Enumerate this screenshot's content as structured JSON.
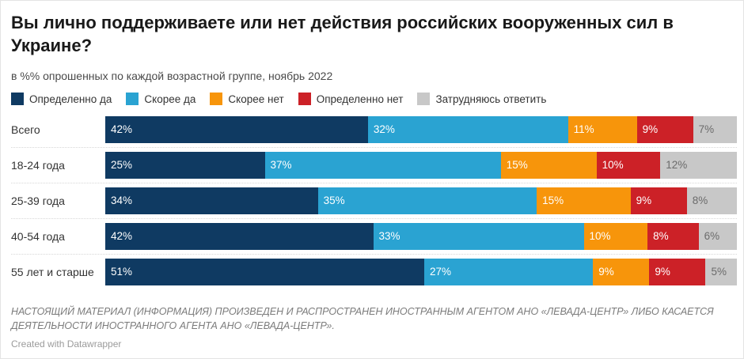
{
  "header": {
    "title": "Вы лично поддерживаете или нет действия российских вооруженных сил в Украине?",
    "subtitle": "в %% опрошенных по каждой возрастной группе, ноябрь 2022"
  },
  "chart_data": {
    "type": "bar",
    "stacked": true,
    "orientation": "horizontal",
    "unit": "%",
    "legend_position": "top",
    "categories": [
      "Всего",
      "18-24 года",
      "25-39 года",
      "40-54 года",
      "55 лет и старше"
    ],
    "series": [
      {
        "name": "Определенно да",
        "color": "#0f3a62",
        "label_color": "#ffffff",
        "values": [
          42,
          25,
          34,
          42,
          51
        ]
      },
      {
        "name": "Скорее да",
        "color": "#2aa3d2",
        "label_color": "#ffffff",
        "values": [
          32,
          37,
          35,
          33,
          27
        ]
      },
      {
        "name": "Скорее нет",
        "color": "#f7950b",
        "label_color": "#ffffff",
        "values": [
          11,
          15,
          15,
          10,
          9
        ]
      },
      {
        "name": "Определенно нет",
        "color": "#cc2127",
        "label_color": "#ffffff",
        "values": [
          9,
          10,
          9,
          8,
          9
        ]
      },
      {
        "name": "Затрудняюсь ответить",
        "color": "#c8c8c8",
        "label_color": "#6b6b6b",
        "values": [
          7,
          12,
          8,
          6,
          5
        ]
      }
    ]
  },
  "footer": {
    "disclaimer": "НАСТОЯЩИЙ МАТЕРИАЛ (ИНФОРМАЦИЯ) ПРОИЗВЕДЕН И РАСПРОСТРАНЕН ИНОСТРАННЫМ АГЕНТОМ АНО «ЛЕВАДА-ЦЕНТР» ЛИБО КАСАЕТСЯ ДЕЯТЕЛЬНОСТИ ИНОСТРАННОГО АГЕНТА АНО «ЛЕВАДА-ЦЕНТР».",
    "credit": "Created with Datawrapper"
  }
}
